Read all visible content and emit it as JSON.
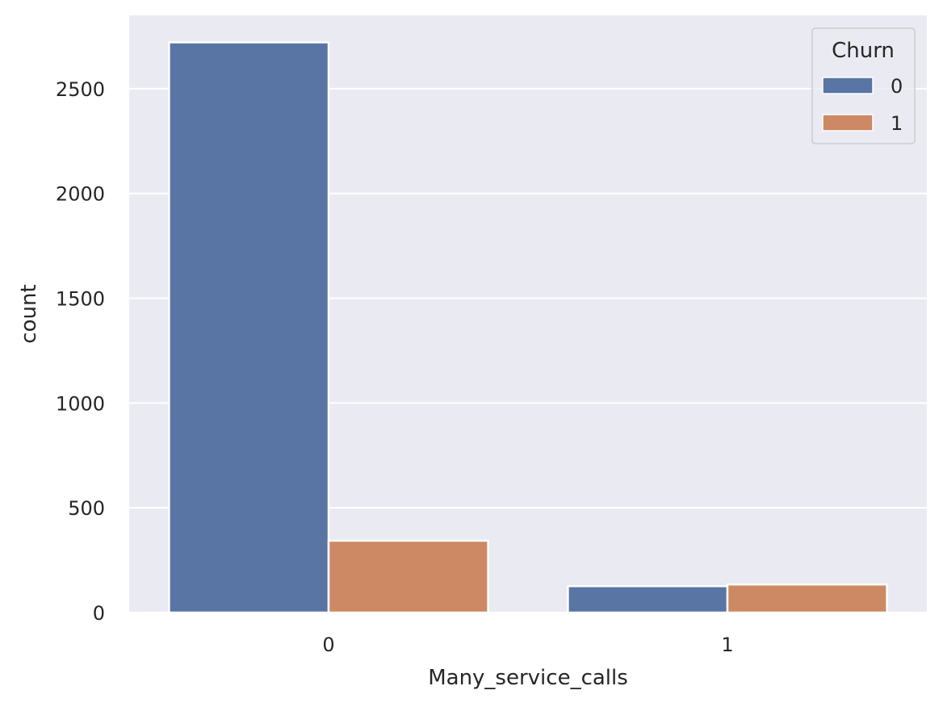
{
  "chart_data": {
    "type": "bar",
    "title": "",
    "xlabel": "Many_service_calls",
    "ylabel": "count",
    "categories": [
      "0",
      "1"
    ],
    "series": [
      {
        "name": "0",
        "color": "#5875a4",
        "values": [
          2721,
          126
        ]
      },
      {
        "name": "1",
        "color": "#cc8963",
        "values": [
          343,
          134
        ]
      }
    ],
    "ylim": [
      0,
      2850
    ],
    "yticks": [
      0,
      500,
      1000,
      1500,
      2000,
      2500
    ],
    "grid": true,
    "background_color": "#eaeaf2",
    "legend": {
      "title": "Churn",
      "position": "top-right"
    }
  }
}
